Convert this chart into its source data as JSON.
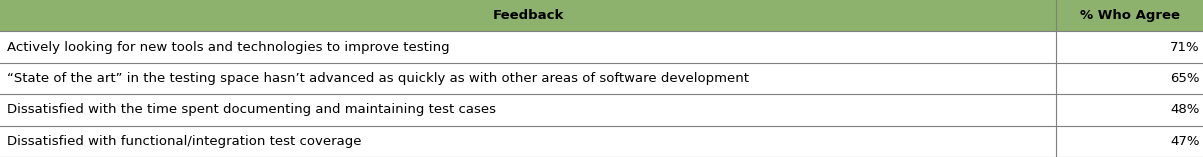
{
  "header_feedback": "Feedback",
  "header_agree": "% Who Agree",
  "rows": [
    {
      "feedback": "Actively looking for new tools and technologies to improve testing",
      "agree": "71%"
    },
    {
      "feedback": "“State of the art” in the testing space hasn’t advanced as quickly as with other areas of software development",
      "agree": "65%"
    },
    {
      "feedback": "Dissatisfied with the time spent documenting and maintaining test cases",
      "agree": "48%"
    },
    {
      "feedback": "Dissatisfied with functional/integration test coverage",
      "agree": "47%"
    }
  ],
  "header_bg_color": "#8db26e",
  "header_text_color": "#000000",
  "row_bg_color": "#ffffff",
  "border_color": "#7f7f7f",
  "font_size": 9.5,
  "header_font_size": 9.5,
  "col_split": 0.878,
  "fig_width": 12.03,
  "fig_height": 1.57,
  "dpi": 100
}
